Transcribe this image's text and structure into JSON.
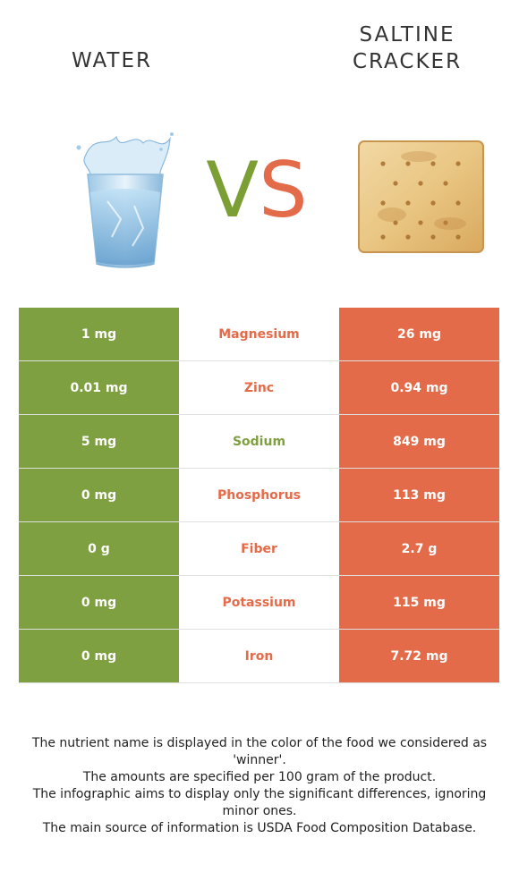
{
  "header": {
    "left_title": "WATER",
    "right_title_line1": "SALTINE",
    "right_title_line2": "CRACKER",
    "vs_v": "V",
    "vs_s": "S"
  },
  "colors": {
    "water": "#7fa040",
    "cracker": "#e46b4a"
  },
  "rows": [
    {
      "left": "1 mg",
      "nutrient": "Magnesium",
      "right": "26 mg",
      "winner": "cracker"
    },
    {
      "left": "0.01 mg",
      "nutrient": "Zinc",
      "right": "0.94 mg",
      "winner": "cracker"
    },
    {
      "left": "5 mg",
      "nutrient": "Sodium",
      "right": "849 mg",
      "winner": "water"
    },
    {
      "left": "0 mg",
      "nutrient": "Phosphorus",
      "right": "113 mg",
      "winner": "cracker"
    },
    {
      "left": "0 g",
      "nutrient": "Fiber",
      "right": "2.7 g",
      "winner": "cracker"
    },
    {
      "left": "0 mg",
      "nutrient": "Potassium",
      "right": "115 mg",
      "winner": "cracker"
    },
    {
      "left": "0 mg",
      "nutrient": "Iron",
      "right": "7.72 mg",
      "winner": "cracker"
    }
  ],
  "notes": [
    "The nutrient name is displayed in the color of the food we considered as 'winner'.",
    "The amounts are specified per 100 gram of the product.",
    "The infographic aims to display only the significant differences, ignoring minor ones.",
    "The main source of information is USDA Food Composition Database."
  ]
}
